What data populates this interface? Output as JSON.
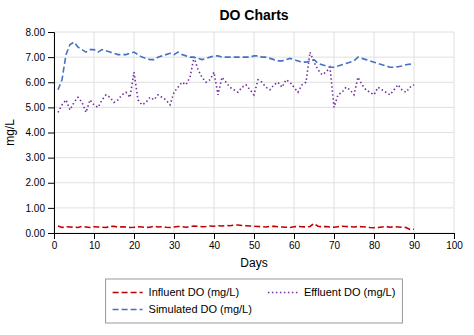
{
  "chart_data": {
    "type": "line",
    "title": "DO Charts",
    "xlabel": "Days",
    "ylabel": "mg/L",
    "x": [
      1,
      2,
      3,
      4,
      5,
      6,
      7,
      8,
      9,
      10,
      11,
      12,
      13,
      14,
      15,
      16,
      17,
      18,
      19,
      20,
      21,
      22,
      23,
      24,
      25,
      26,
      27,
      28,
      29,
      30,
      31,
      32,
      33,
      34,
      35,
      36,
      37,
      38,
      39,
      40,
      41,
      42,
      43,
      44,
      45,
      46,
      47,
      48,
      49,
      50,
      51,
      52,
      53,
      54,
      55,
      56,
      57,
      58,
      59,
      60,
      61,
      62,
      63,
      64,
      65,
      66,
      67,
      68,
      69,
      70,
      71,
      72,
      73,
      74,
      75,
      76,
      77,
      78,
      79,
      80,
      81,
      82,
      83,
      84,
      85,
      86,
      87,
      88,
      89,
      90
    ],
    "series": [
      {
        "name": "Influent DO (mg/L)",
        "color": "#c00000",
        "line_style": "dashed",
        "values": [
          0.28,
          0.22,
          0.25,
          0.24,
          0.23,
          0.22,
          0.26,
          0.24,
          0.22,
          0.25,
          0.24,
          0.23,
          0.22,
          0.26,
          0.27,
          0.23,
          0.25,
          0.24,
          0.22,
          0.23,
          0.25,
          0.24,
          0.22,
          0.23,
          0.27,
          0.24,
          0.25,
          0.23,
          0.22,
          0.24,
          0.26,
          0.25,
          0.23,
          0.24,
          0.28,
          0.27,
          0.25,
          0.26,
          0.28,
          0.27,
          0.29,
          0.28,
          0.3,
          0.29,
          0.31,
          0.32,
          0.3,
          0.29,
          0.28,
          0.27,
          0.26,
          0.25,
          0.24,
          0.26,
          0.27,
          0.25,
          0.24,
          0.23,
          0.22,
          0.25,
          0.26,
          0.25,
          0.24,
          0.26,
          0.38,
          0.27,
          0.25,
          0.26,
          0.24,
          0.23,
          0.25,
          0.27,
          0.26,
          0.25,
          0.24,
          0.26,
          0.25,
          0.24,
          0.22,
          0.21,
          0.22,
          0.24,
          0.26,
          0.23,
          0.25,
          0.24,
          0.23,
          0.22,
          0.14,
          0.15
        ]
      },
      {
        "name": "Effluent DO (mg/L)",
        "color": "#7030a0",
        "line_style": "dotted",
        "values": [
          4.8,
          5.1,
          5.3,
          4.9,
          5.2,
          5.4,
          5.2,
          4.8,
          5.3,
          5.1,
          5.0,
          5.3,
          5.5,
          5.4,
          5.2,
          5.3,
          5.5,
          5.6,
          5.4,
          6.4,
          5.3,
          5.1,
          5.2,
          5.4,
          5.3,
          5.5,
          5.4,
          5.3,
          5.1,
          5.6,
          5.8,
          6.0,
          5.9,
          6.2,
          7.0,
          6.5,
          6.2,
          6.0,
          6.1,
          6.4,
          5.5,
          6.2,
          6.0,
          5.8,
          5.7,
          5.6,
          5.8,
          5.9,
          5.7,
          5.5,
          6.1,
          6.0,
          5.8,
          5.7,
          5.9,
          6.0,
          5.8,
          6.1,
          6.0,
          5.8,
          5.6,
          5.9,
          6.0,
          7.2,
          6.8,
          6.5,
          6.3,
          6.4,
          6.6,
          5.0,
          5.5,
          5.6,
          5.8,
          5.7,
          5.5,
          6.2,
          5.9,
          5.7,
          5.6,
          5.5,
          5.8,
          5.7,
          5.6,
          5.5,
          5.7,
          5.9,
          5.7,
          5.6,
          5.8,
          5.9
        ]
      },
      {
        "name": "Simulated DO (mg/L)",
        "color": "#4472c4",
        "line_style": "dashed",
        "values": [
          5.7,
          6.1,
          7.1,
          7.5,
          7.6,
          7.4,
          7.3,
          7.2,
          7.3,
          7.3,
          7.2,
          7.3,
          7.25,
          7.2,
          7.15,
          7.1,
          7.1,
          7.1,
          7.15,
          7.2,
          7.1,
          7.0,
          6.95,
          6.9,
          6.9,
          7.0,
          7.05,
          7.1,
          7.15,
          7.1,
          7.2,
          7.1,
          7.05,
          7.0,
          7.0,
          6.95,
          6.9,
          6.95,
          7.0,
          7.05,
          7.05,
          7.0,
          7.0,
          7.0,
          7.0,
          7.0,
          7.0,
          7.0,
          7.0,
          7.05,
          7.05,
          7.0,
          7.0,
          6.95,
          6.9,
          6.85,
          6.85,
          6.9,
          6.95,
          6.9,
          6.85,
          6.8,
          6.8,
          6.85,
          6.9,
          6.75,
          6.7,
          6.65,
          6.6,
          6.6,
          6.65,
          6.7,
          6.75,
          6.8,
          6.85,
          7.0,
          6.95,
          6.9,
          6.85,
          6.8,
          6.75,
          6.7,
          6.65,
          6.6,
          6.6,
          6.62,
          6.65,
          6.7,
          6.72,
          6.75
        ]
      }
    ],
    "xlim": [
      0,
      100
    ],
    "ylim": [
      0.0,
      8.0
    ],
    "xticks": [
      0,
      10,
      20,
      30,
      40,
      50,
      60,
      70,
      80,
      90,
      100
    ],
    "yticks": [
      {
        "value": 0.0,
        "label": "0.00"
      },
      {
        "value": 1.0,
        "label": "1.00"
      },
      {
        "value": 2.0,
        "label": "2.00"
      },
      {
        "value": 3.0,
        "label": "3.00"
      },
      {
        "value": 4.0,
        "label": "4.00"
      },
      {
        "value": 5.0,
        "label": "5.00"
      },
      {
        "value": 6.0,
        "label": "6.00"
      },
      {
        "value": 7.0,
        "label": "7.00"
      },
      {
        "value": 8.0,
        "label": "8.00"
      }
    ],
    "grid": true,
    "legend": "bottom"
  }
}
